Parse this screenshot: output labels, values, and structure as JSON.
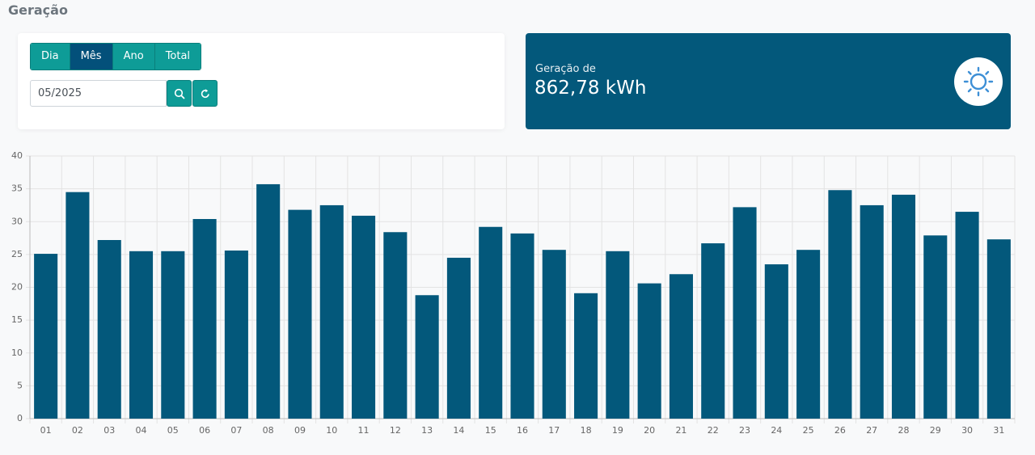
{
  "header": {
    "title": "Geração"
  },
  "controls": {
    "period_buttons": [
      {
        "label": "Dia",
        "active": false
      },
      {
        "label": "Mês",
        "active": true
      },
      {
        "label": "Ano",
        "active": false
      },
      {
        "label": "Total",
        "active": false
      }
    ],
    "date_input": "05/2025"
  },
  "summary": {
    "label": "Geração de",
    "value": "862,78 kWh"
  },
  "chart_data": {
    "type": "bar",
    "categories": [
      "01",
      "02",
      "03",
      "04",
      "05",
      "06",
      "07",
      "08",
      "09",
      "10",
      "11",
      "12",
      "13",
      "14",
      "15",
      "16",
      "17",
      "18",
      "19",
      "20",
      "21",
      "22",
      "23",
      "24",
      "25",
      "26",
      "27",
      "28",
      "29",
      "30",
      "31"
    ],
    "values": [
      25.1,
      34.5,
      27.2,
      25.5,
      25.5,
      30.4,
      25.6,
      35.7,
      31.8,
      32.5,
      30.9,
      28.4,
      18.8,
      24.5,
      29.2,
      28.2,
      25.7,
      19.1,
      25.5,
      20.6,
      22.0,
      26.7,
      32.2,
      23.5,
      25.7,
      34.8,
      32.5,
      34.1,
      27.9,
      31.5,
      27.3
    ],
    "color": "#03587b",
    "ylim": [
      0,
      40
    ],
    "yticks": [
      0,
      5,
      10,
      15,
      20,
      25,
      30,
      35,
      40
    ],
    "grid": true
  }
}
